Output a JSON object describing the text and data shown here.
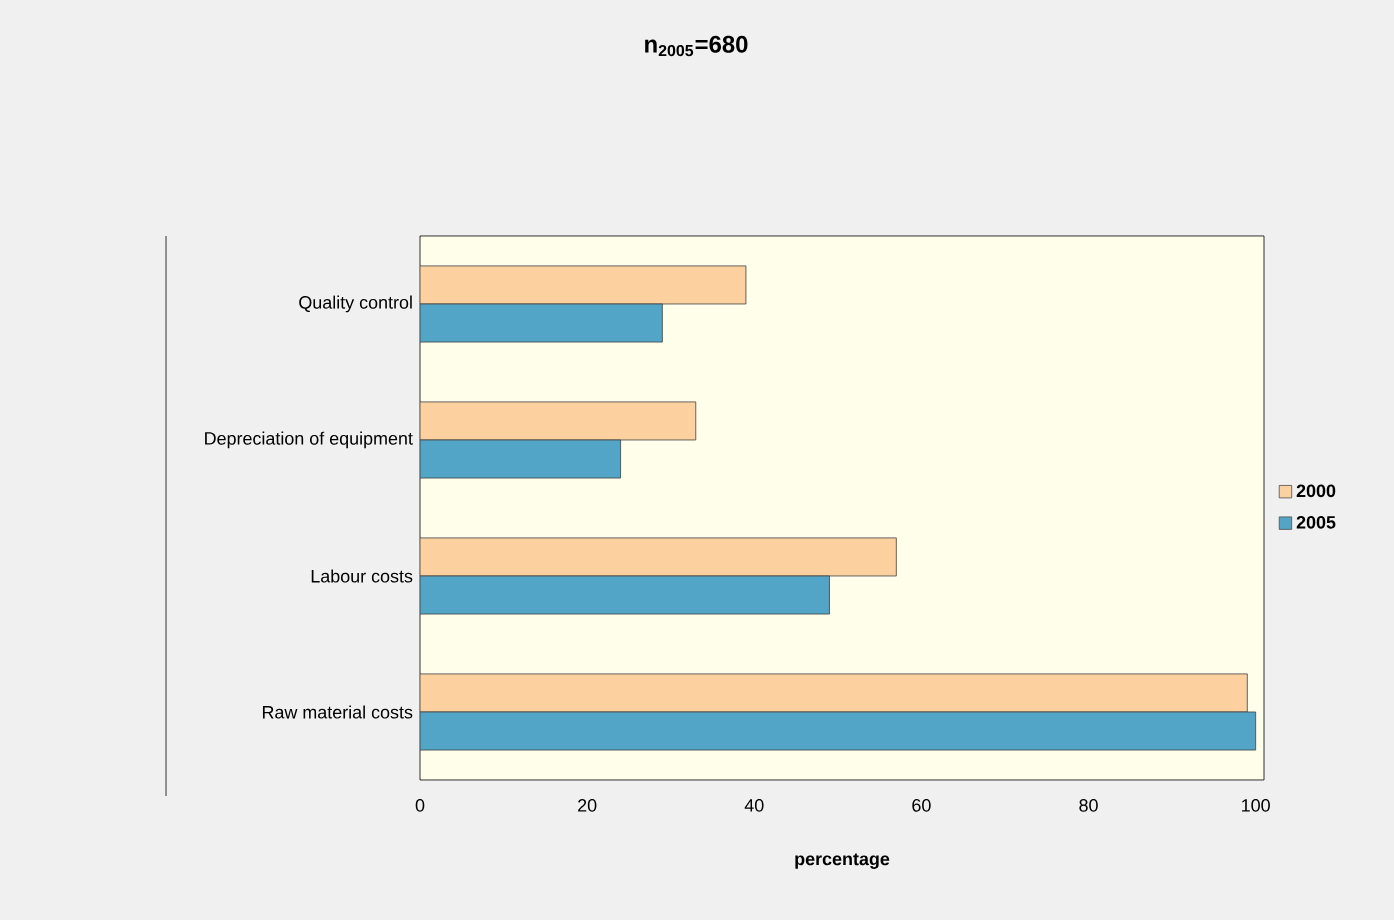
{
  "chart_data": {
    "type": "bar",
    "orientation": "horizontal",
    "title": "n$_{2005}$=680",
    "xlabel": "percentage",
    "categories": [
      "Quality control",
      "Depreciation of equipment",
      "Labour costs",
      "Raw material costs"
    ],
    "series": [
      {
        "name": "2000",
        "color": "#fdd09f",
        "values": [
          39,
          33,
          57,
          99
        ]
      },
      {
        "name": "2005",
        "color": "#52a5c6",
        "values": [
          29,
          24,
          49,
          100
        ]
      }
    ],
    "xlim": [
      0,
      101
    ],
    "xticks": [
      0,
      20,
      40,
      60,
      80,
      100
    ],
    "grid": false,
    "legend": "right"
  }
}
